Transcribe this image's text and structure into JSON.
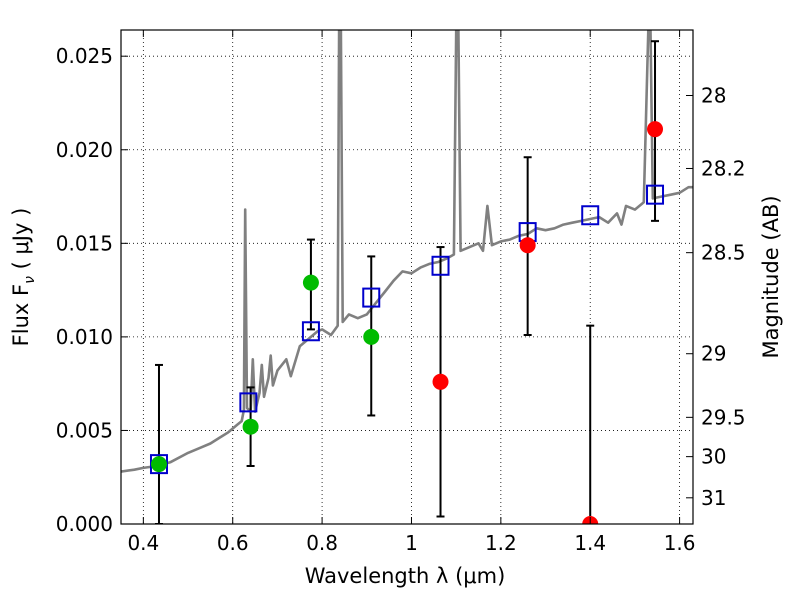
{
  "chart_data": {
    "type": "scatter",
    "title": "",
    "xlabel": "Wavelength  λ (μm)",
    "ylabel": "Flux  F",
    "ylabel_subscript": "ν",
    "ylabel_unit": "  ( μJy )",
    "ylabel_right": "Magnitude (AB)",
    "xlim": [
      0.35,
      1.63
    ],
    "ylim": [
      0.0,
      0.0264
    ],
    "grid": true,
    "grid_style": "dotted",
    "x_ticks": [
      0.4,
      0.6,
      0.8,
      1.0,
      1.2,
      1.4,
      1.6
    ],
    "x_tick_labels": [
      "0.4",
      "0.6",
      "0.8",
      "1",
      "1.2",
      "1.4",
      "1.6"
    ],
    "y_ticks": [
      0.0,
      0.005,
      0.01,
      0.015,
      0.02,
      0.025
    ],
    "y_tick_labels": [
      "0.000",
      "0.005",
      "0.010",
      "0.015",
      "0.020",
      "0.025"
    ],
    "right_ticks": [
      {
        "flux": 0.0229,
        "label": "28"
      },
      {
        "flux": 0.019,
        "label": "28.2"
      },
      {
        "flux": 0.0145,
        "label": "28.5"
      },
      {
        "flux": 0.0091,
        "label": "29"
      },
      {
        "flux": 0.0057,
        "label": "29.5"
      },
      {
        "flux": 0.0036,
        "label": "30"
      },
      {
        "flux": 0.0014,
        "label": "31"
      }
    ],
    "colors": {
      "spectrum": "#808080",
      "model_box": "#0000cc",
      "detected": "#00bb00",
      "undetected": "#ff0000",
      "errorbar": "#000000"
    },
    "series": [
      {
        "kind": "line",
        "points": [
          [
            0.35,
            0.0028
          ],
          [
            0.38,
            0.0029
          ],
          [
            0.4,
            0.003
          ],
          [
            0.43,
            0.0031
          ],
          [
            0.46,
            0.0033
          ],
          [
            0.5,
            0.0038
          ],
          [
            0.53,
            0.0041
          ],
          [
            0.55,
            0.0043
          ],
          [
            0.57,
            0.0046
          ],
          [
            0.59,
            0.0049
          ],
          [
            0.61,
            0.0053
          ],
          [
            0.62,
            0.0055
          ],
          [
            0.625,
            0.0061
          ],
          [
            0.628,
            0.0168
          ],
          [
            0.632,
            0.0062
          ],
          [
            0.64,
            0.006
          ],
          [
            0.645,
            0.0088
          ],
          [
            0.65,
            0.006
          ],
          [
            0.66,
            0.007
          ],
          [
            0.665,
            0.0085
          ],
          [
            0.67,
            0.0068
          ],
          [
            0.68,
            0.0078
          ],
          [
            0.685,
            0.009
          ],
          [
            0.69,
            0.0074
          ],
          [
            0.7,
            0.0082
          ],
          [
            0.72,
            0.0088
          ],
          [
            0.73,
            0.0079
          ],
          [
            0.75,
            0.0095
          ],
          [
            0.77,
            0.0099
          ],
          [
            0.79,
            0.0103
          ],
          [
            0.8,
            0.0104
          ],
          [
            0.82,
            0.0101
          ],
          [
            0.835,
            0.0106
          ],
          [
            0.838,
            0.0264
          ],
          [
            0.842,
            0.0264
          ],
          [
            0.846,
            0.0108
          ],
          [
            0.86,
            0.0112
          ],
          [
            0.88,
            0.011
          ],
          [
            0.9,
            0.0112
          ],
          [
            0.92,
            0.0118
          ],
          [
            0.94,
            0.0124
          ],
          [
            0.96,
            0.013
          ],
          [
            0.98,
            0.0135
          ],
          [
            1.0,
            0.0134
          ],
          [
            1.02,
            0.0137
          ],
          [
            1.04,
            0.0139
          ],
          [
            1.06,
            0.014
          ],
          [
            1.08,
            0.0142
          ],
          [
            1.095,
            0.0144
          ],
          [
            1.1,
            0.0264
          ],
          [
            1.105,
            0.0264
          ],
          [
            1.11,
            0.0146
          ],
          [
            1.13,
            0.0148
          ],
          [
            1.15,
            0.015
          ],
          [
            1.16,
            0.0146
          ],
          [
            1.17,
            0.017
          ],
          [
            1.18,
            0.0149
          ],
          [
            1.2,
            0.0151
          ],
          [
            1.22,
            0.0152
          ],
          [
            1.24,
            0.0154
          ],
          [
            1.26,
            0.0155
          ],
          [
            1.28,
            0.0158
          ],
          [
            1.3,
            0.0157
          ],
          [
            1.32,
            0.0158
          ],
          [
            1.34,
            0.016
          ],
          [
            1.36,
            0.0161
          ],
          [
            1.38,
            0.0162
          ],
          [
            1.4,
            0.0163
          ],
          [
            1.42,
            0.0164
          ],
          [
            1.44,
            0.0161
          ],
          [
            1.46,
            0.0166
          ],
          [
            1.47,
            0.016
          ],
          [
            1.48,
            0.017
          ],
          [
            1.5,
            0.0168
          ],
          [
            1.52,
            0.0172
          ],
          [
            1.53,
            0.0264
          ],
          [
            1.535,
            0.0264
          ],
          [
            1.54,
            0.0174
          ],
          [
            1.56,
            0.0175
          ],
          [
            1.58,
            0.0176
          ],
          [
            1.6,
            0.0177
          ],
          [
            1.62,
            0.018
          ],
          [
            1.63,
            0.018
          ]
        ]
      },
      {
        "kind": "model_boxes",
        "points": [
          [
            0.435,
            0.0032
          ],
          [
            0.635,
            0.0065
          ],
          [
            0.775,
            0.0103
          ],
          [
            0.91,
            0.0121
          ],
          [
            1.065,
            0.0138
          ],
          [
            1.26,
            0.0156
          ],
          [
            1.4,
            0.0165
          ],
          [
            1.545,
            0.0176
          ]
        ]
      },
      {
        "kind": "detected",
        "points": [
          [
            0.435,
            0.0032
          ],
          [
            0.64,
            0.0052
          ],
          [
            0.775,
            0.0129
          ],
          [
            0.91,
            0.01
          ]
        ]
      },
      {
        "kind": "undetected",
        "points": [
          [
            1.065,
            0.0076
          ],
          [
            1.26,
            0.0149
          ],
          [
            1.4,
            0.0
          ],
          [
            1.545,
            0.0211
          ]
        ]
      },
      {
        "kind": "errorbars",
        "points": [
          [
            0.435,
            0.0,
            0.0085
          ],
          [
            0.64,
            0.0031,
            0.0073
          ],
          [
            0.775,
            0.0104,
            0.0152
          ],
          [
            0.91,
            0.0058,
            0.0143
          ],
          [
            1.065,
            0.0004,
            0.0148
          ],
          [
            1.26,
            0.0101,
            0.0196
          ],
          [
            1.4,
            0.0,
            0.0106
          ],
          [
            1.545,
            0.0162,
            0.0258
          ]
        ]
      }
    ]
  }
}
